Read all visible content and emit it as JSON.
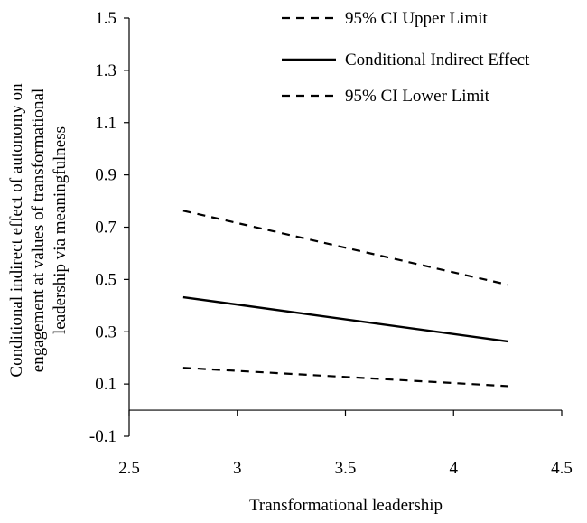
{
  "chart_data": {
    "type": "line",
    "title": "",
    "xlabel": "Transformational leadership",
    "ylabel_lines": [
      "Conditional indirect effect of autonomy on",
      "engagement at values of transformational",
      "leadership via meaningfulness"
    ],
    "xlim": [
      2.5,
      4.5
    ],
    "ylim": [
      -0.1,
      1.5
    ],
    "x_ticks": [
      "2.5",
      "3",
      "3.5",
      "4",
      "4.5"
    ],
    "y_ticks": [
      "1.5",
      "1.3",
      "1.1",
      "0.9",
      "0.7",
      "0.5",
      "0.3",
      "0.1",
      "-0.1"
    ],
    "x": [
      2.75,
      4.25
    ],
    "series": [
      {
        "name": "95% CI Upper Limit",
        "style": "dashed",
        "values": [
          0.763,
          0.48
        ]
      },
      {
        "name": "Conditional Indirect Effect",
        "style": "solid",
        "values": [
          0.432,
          0.263
        ]
      },
      {
        "name": "95% CI Lower Limit",
        "style": "dashed",
        "values": [
          0.162,
          0.092
        ]
      }
    ],
    "legend_position": "top-right",
    "grid": false,
    "line_color": "#000000"
  }
}
